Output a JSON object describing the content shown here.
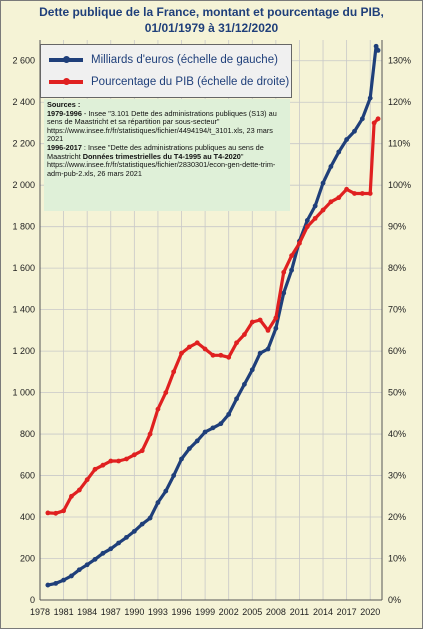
{
  "chart_data": {
    "type": "line",
    "title": "Dette publique de la France, montant et pourcentage du PIB,",
    "subtitle": "01/01/1979 à 31/12/2020",
    "x_tick_labels": [
      "1978",
      "1981",
      "1984",
      "1987",
      "1990",
      "1993",
      "1996",
      "1999",
      "2002",
      "2005",
      "2008",
      "2011",
      "2014",
      "2017",
      "2020"
    ],
    "xlim": [
      1978,
      2021.5
    ],
    "left_axis": {
      "ylim": [
        0,
        2700
      ],
      "tick_labels": [
        "0",
        "200",
        "400",
        "600",
        "800",
        "1 000",
        "1 200",
        "1 400",
        "1 600",
        "1 800",
        "2 000",
        "2 200",
        "2 400",
        "2 600"
      ]
    },
    "right_axis": {
      "ylim": [
        0,
        135
      ],
      "tick_labels": [
        "0%",
        "10%",
        "20%",
        "30%",
        "40%",
        "50%",
        "60%",
        "70%",
        "80%",
        "90%",
        "100%",
        "110%",
        "120%",
        "130%"
      ]
    },
    "grid": true,
    "colors": {
      "debt": "#1f3f7a",
      "ratio": "#e02020",
      "background": "#f5f3d6",
      "title": "#1f3f7a",
      "sources_box": "#dff0d8"
    },
    "series": [
      {
        "name": "Milliards d'euros (échelle de gauche)",
        "axis": "left",
        "color": "#1f3f7a",
        "x": [
          1979,
          1980,
          1981,
          1982,
          1983,
          1984,
          1985,
          1986,
          1987,
          1988,
          1989,
          1990,
          1991,
          1992,
          1993,
          1994,
          1995,
          1996,
          1997,
          1998,
          1999,
          2000,
          2001,
          2002,
          2003,
          2004,
          2005,
          2006,
          2007,
          2008,
          2009,
          2010,
          2011,
          2012,
          2013,
          2014,
          2015,
          2016,
          2017,
          2018,
          2019,
          2020,
          2020.75,
          2021
        ],
        "values": [
          72,
          80,
          96,
          116,
          146,
          170,
          196,
          225,
          247,
          275,
          302,
          331,
          366,
          395,
          470,
          525,
          600,
          680,
          730,
          767,
          810,
          830,
          850,
          895,
          970,
          1040,
          1110,
          1190,
          1210,
          1310,
          1480,
          1590,
          1730,
          1830,
          1900,
          2010,
          2090,
          2160,
          2220,
          2260,
          2320,
          2420,
          2670,
          2650
        ]
      },
      {
        "name": "Pourcentage du PIB (échelle de droite)",
        "axis": "right",
        "color": "#e02020",
        "x": [
          1979,
          1980,
          1981,
          1982,
          1983,
          1984,
          1985,
          1986,
          1987,
          1988,
          1989,
          1990,
          1991,
          1992,
          1993,
          1994,
          1995,
          1996,
          1997,
          1998,
          1999,
          2000,
          2001,
          2002,
          2003,
          2004,
          2005,
          2006,
          2007,
          2008,
          2009,
          2010,
          2011,
          2012,
          2013,
          2014,
          2015,
          2016,
          2017,
          2018,
          2019,
          2020,
          2020.5,
          2021
        ],
        "values": [
          21,
          20.9,
          21.5,
          25,
          26.5,
          29,
          31.5,
          32.5,
          33.5,
          33.5,
          34,
          35,
          36,
          40,
          46,
          50,
          55,
          59.5,
          61,
          62,
          60.5,
          59,
          59,
          58.5,
          62,
          64,
          67,
          67.5,
          65,
          68,
          79,
          83,
          86,
          90,
          92,
          94,
          96,
          97,
          99,
          98,
          98,
          98,
          115,
          116
        ]
      }
    ],
    "legend": {
      "placement": "top-left",
      "entries": [
        "Milliards d'euros (échelle de gauche)",
        "Pourcentage du PIB (échelle de droite)"
      ]
    },
    "sources": {
      "heading": "Sources :",
      "p1_bold": "1979-1996",
      "p1_text": " - Insee \"3.101 Dette des administrations publiques (S13) au sens de Maastricht et sa répartition par sous-secteur\" https://www.insee.fr/fr/statistiques/fichier/4494194/t_3101.xls, 23 mars 2021",
      "p2_bold": "1996-2017",
      "p2_text": " : Insee \"Dette des administrations publiques au sens de Maastricht ",
      "p2_bold2": "Données trimestrielles du T4-1995 au T4-2020",
      "p2_text2": "\" https://www.insee.fr/fr/statistiques/fichier/2830301/econ-gen-dette-trim-adm-pub-2.xls, 26 mars 2021"
    }
  }
}
